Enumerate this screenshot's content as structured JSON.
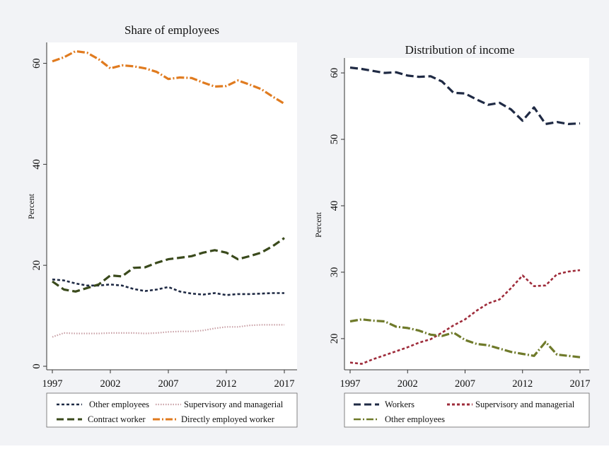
{
  "chart_data": [
    {
      "type": "line",
      "title": "Share of employees",
      "xlabel": "",
      "ylabel": "Percent",
      "xlim": [
        1997,
        2017
      ],
      "ylim": [
        0,
        64
      ],
      "xticks": [
        "1997",
        "2002",
        "2007",
        "2012",
        "2017"
      ],
      "yticks": [
        "0",
        "20",
        "40",
        "60"
      ],
      "grid": false,
      "legend_placement": "bottom",
      "x": [
        1997,
        1998,
        1999,
        2000,
        2001,
        2002,
        2003,
        2004,
        2005,
        2006,
        2007,
        2008,
        2009,
        2010,
        2011,
        2012,
        2013,
        2014,
        2015,
        2016,
        2017
      ],
      "series": [
        {
          "name": "Other employees",
          "style": "short-dash",
          "color": "#1f2a44",
          "values": [
            17.2,
            17.0,
            16.4,
            16.0,
            16.0,
            16.2,
            16.0,
            15.3,
            14.9,
            15.2,
            15.7,
            14.8,
            14.4,
            14.2,
            14.5,
            14.1,
            14.3,
            14.3,
            14.4,
            14.5,
            14.5
          ]
        },
        {
          "name": "Supervisory and managerial",
          "style": "dot",
          "color": "#c9a0a6",
          "values": [
            5.8,
            6.6,
            6.5,
            6.5,
            6.5,
            6.6,
            6.6,
            6.6,
            6.5,
            6.6,
            6.8,
            6.9,
            6.9,
            7.1,
            7.5,
            7.8,
            7.8,
            8.1,
            8.2,
            8.2,
            8.2
          ]
        },
        {
          "name": "Contract worker",
          "style": "long-dash",
          "color": "#3a4a1c",
          "values": [
            16.8,
            15.2,
            14.8,
            15.5,
            16.2,
            18.0,
            17.8,
            19.5,
            19.6,
            20.5,
            21.2,
            21.5,
            21.8,
            22.5,
            23.0,
            22.5,
            21.2,
            21.8,
            22.5,
            23.8,
            25.4
          ]
        },
        {
          "name": "Directly employed worker",
          "style": "dash-dot",
          "color": "#e07b1f",
          "values": [
            60.4,
            61.2,
            62.4,
            62.1,
            60.8,
            59.0,
            59.6,
            59.4,
            59.0,
            58.3,
            56.9,
            57.2,
            57.1,
            56.2,
            55.4,
            55.5,
            56.6,
            55.8,
            54.9,
            53.4,
            52.0
          ]
        }
      ]
    },
    {
      "type": "line",
      "title": "Distribution of income",
      "xlabel": "",
      "ylabel": "Percent",
      "xlim": [
        1997,
        2017
      ],
      "ylim": [
        15.2,
        61.5
      ],
      "xticks": [
        "1997",
        "2002",
        "2007",
        "2012",
        "2017"
      ],
      "yticks": [
        "20",
        "30",
        "40",
        "50",
        "60"
      ],
      "grid": false,
      "legend_placement": "bottom",
      "x": [
        1997,
        1998,
        1999,
        2000,
        2001,
        2002,
        2003,
        2004,
        2005,
        2006,
        2007,
        2008,
        2009,
        2010,
        2011,
        2012,
        2013,
        2014,
        2015,
        2016,
        2017
      ],
      "series": [
        {
          "name": "Workers",
          "style": "long-dash",
          "color": "#1f2a44",
          "values": [
            60.8,
            60.6,
            60.3,
            60.0,
            60.1,
            59.6,
            59.4,
            59.5,
            58.7,
            57.0,
            56.9,
            56.0,
            55.2,
            55.5,
            54.5,
            52.8,
            54.8,
            52.3,
            52.6,
            52.3,
            52.4
          ]
        },
        {
          "name": "Supervisory and managerial",
          "style": "short-dash",
          "color": "#9e2b3a",
          "values": [
            16.4,
            16.2,
            16.9,
            17.5,
            18.1,
            18.7,
            19.4,
            19.9,
            20.9,
            22.0,
            22.9,
            24.2,
            25.3,
            25.9,
            27.6,
            29.5,
            27.9,
            28.0,
            29.7,
            30.1,
            30.3
          ]
        },
        {
          "name": "Other employees",
          "style": "dash-dot",
          "color": "#6f7a2a",
          "values": [
            22.6,
            22.9,
            22.7,
            22.6,
            21.8,
            21.6,
            21.2,
            20.6,
            20.4,
            20.9,
            19.8,
            19.2,
            19.0,
            18.5,
            18.0,
            17.7,
            17.4,
            19.5,
            17.6,
            17.4,
            17.2
          ]
        }
      ]
    }
  ]
}
